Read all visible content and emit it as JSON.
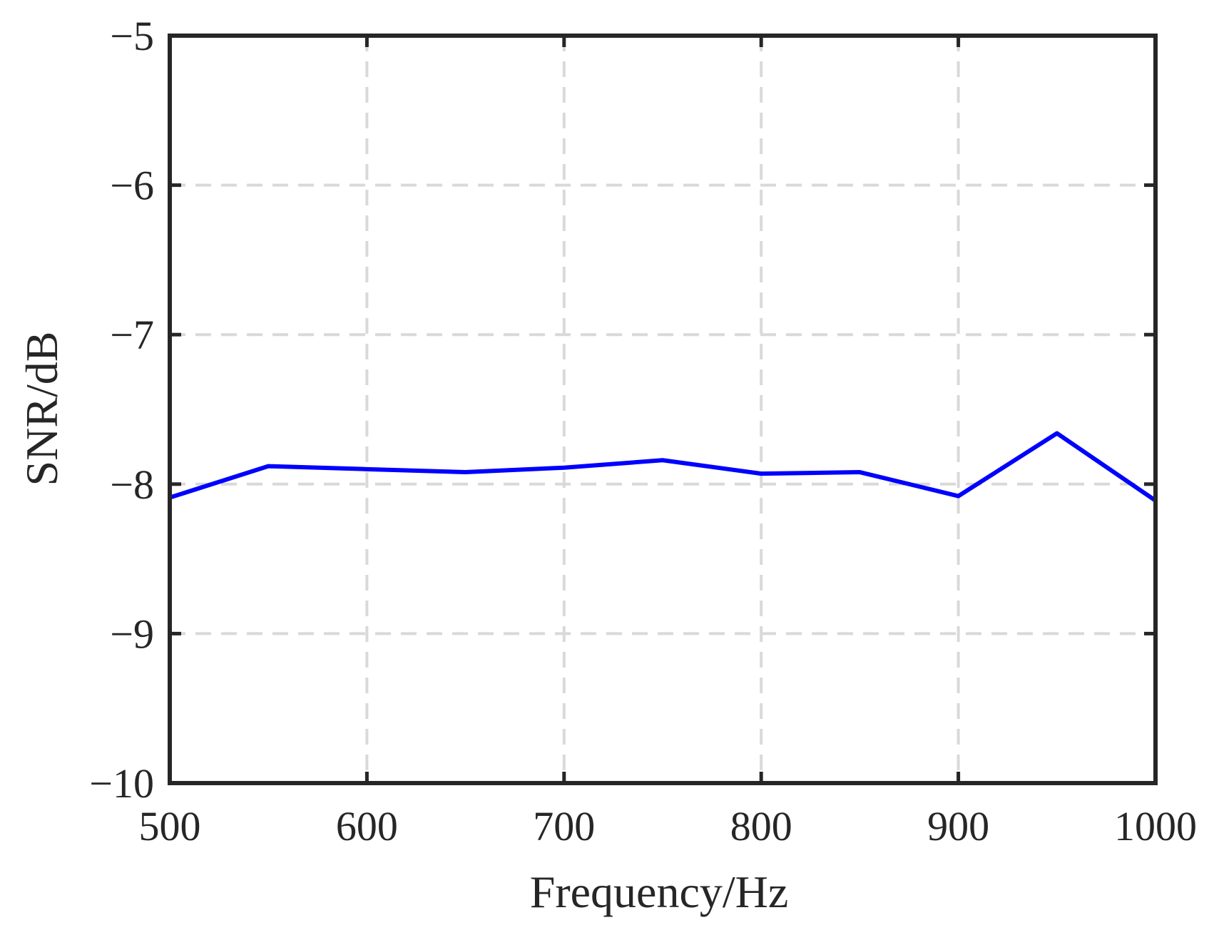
{
  "chart_data": {
    "type": "line",
    "xlabel": "Frequency/Hz",
    "ylabel": "SNR/dB",
    "xlim": [
      500,
      1000
    ],
    "ylim": [
      -10,
      -5
    ],
    "xticks": [
      500,
      600,
      700,
      800,
      900,
      1000
    ],
    "yticks": [
      -10,
      -9,
      -8,
      -7,
      -6,
      -5
    ],
    "xtick_labels": [
      "500",
      "600",
      "700",
      "800",
      "900",
      "1000"
    ],
    "ytick_labels": [
      "−10",
      "−9",
      "−8",
      "−7",
      "−6",
      "−5"
    ],
    "grid": true,
    "series": [
      {
        "color": "#0000ff",
        "x": [
          500,
          550,
          600,
          650,
          700,
          750,
          800,
          850,
          900,
          950,
          1000
        ],
        "y": [
          -8.09,
          -7.88,
          -7.9,
          -7.92,
          -7.89,
          -7.84,
          -7.93,
          -7.92,
          -8.08,
          -7.66,
          -8.11
        ]
      }
    ]
  },
  "colors": {
    "axes": "#262626",
    "grid": "#d9d9d9",
    "line": "#0000ff"
  }
}
